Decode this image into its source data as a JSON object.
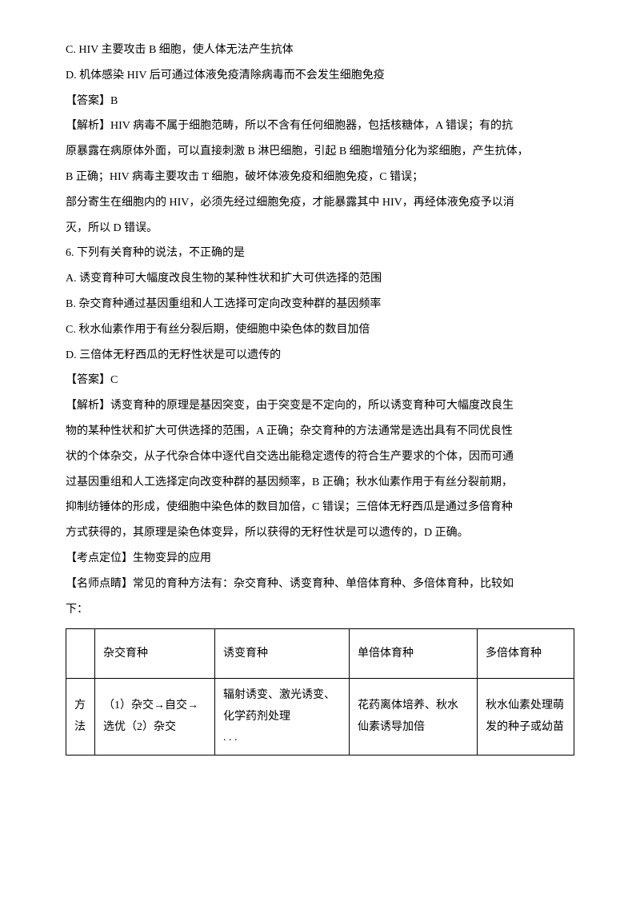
{
  "lines": {
    "l1": "C. HIV 主要攻击 B 细胞，使人体无法产生抗体",
    "l2": "D. 机体感染 HIV 后可通过体液免疫清除病毒而不会发生细胞免疫",
    "l3": "【答案】B",
    "l4": "【解析】HIV 病毒不属于细胞范畴，所以不含有任何细胞器，包括核糖体，A 错误；有的抗",
    "l5": "原暴露在病原体外面，可以直接刺激 B 淋巴细胞，引起 B 细胞增殖分化为浆细胞，产生抗体，",
    "l6": "B 正确；HIV 病毒主要攻击 T 细胞，破坏体液免疫和细胞免疫，C 错误；",
    "l7": "部分寄生在细胞内的 HIV，必须先经过细胞免疫，才能暴露其中 HIV，再经体液免疫予以消",
    "l8": "灭，所以 D 错误。",
    "l9": "6. 下列有关育种的说法，不正确的是",
    "l10": "A. 诱变育种可大幅度改良生物的某种性状和扩大可供选择的范围",
    "l11": "B. 杂交育种通过基因重组和人工选择可定向改变种群的基因频率",
    "l12": "C. 秋水仙素作用于有丝分裂后期，使细胞中染色体的数目加倍",
    "l13": "D. 三倍体无籽西瓜的无籽性状是可以遗传的",
    "l14": "【答案】C",
    "l15": "【解析】诱变育种的原理是基因突变，由于突变是不定向的，所以诱变育种可大幅度改良生",
    "l16": "物的某种性状和扩大可供选择的范围，A 正确；杂交育种的方法通常是选出具有不同优良性",
    "l17": "状的个体杂交，从子代杂合体中逐代自交选出能稳定遗传的符合生产要求的个体，因而可通",
    "l18": "过基因重组和人工选择定向改变种群的基因频率，B 正确；秋水仙素作用于有丝分裂前期，",
    "l19": "抑制纺锤体的形成，使细胞中染色体的数目加倍，C 错误；三倍体无籽西瓜是通过多倍育种",
    "l20": "方式获得的，其原理是染色体变异，所以获得的无籽性状是可以遗传的，D 正确。",
    "l21": "【考点定位】生物变异的应用",
    "l22": "【名师点睛】常见的育种方法有：杂交育种、诱变育种、单倍体育种、多倍体育种，比较如",
    "l23": "下："
  },
  "table": {
    "header": {
      "blank": "",
      "c1": "杂交育种",
      "c2": "诱变育种",
      "c3": "单倍体育种",
      "c4": "多倍体育种"
    },
    "row1": {
      "h": "方法",
      "c1": "（1）杂交→自交→选优（2）杂交",
      "c2": "辐射诱变、激光诱变、化学药剂处理",
      "c2b": ". . .",
      "c3": "花药离体培养、秋水仙素诱导加倍",
      "c4": "秋水仙素处理萌发的种子或幼苗"
    }
  }
}
